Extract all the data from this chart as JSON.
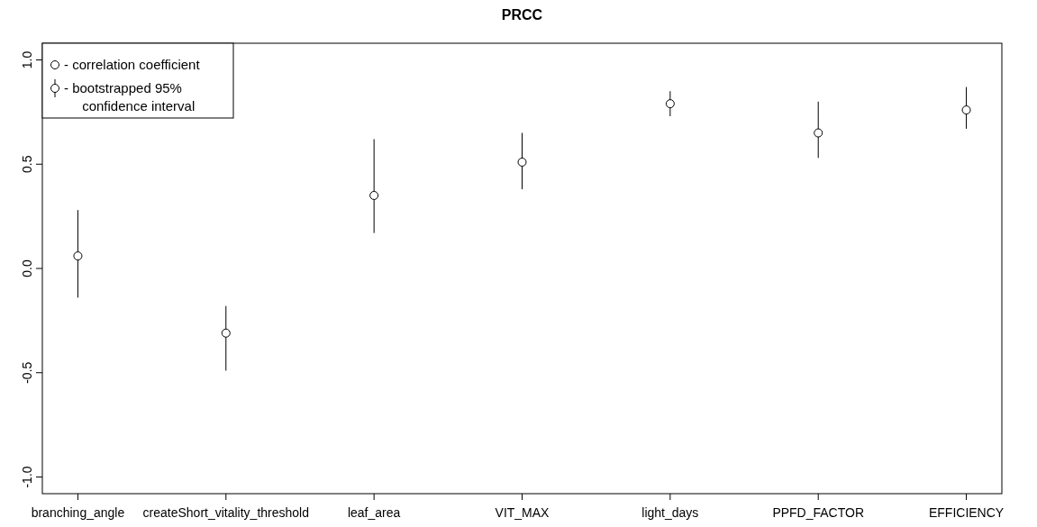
{
  "chart_data": {
    "type": "scatter",
    "title": "PRCC",
    "categories": [
      "branching_angle",
      "createShort_vitality_threshold",
      "leaf_area",
      "VIT_MAX",
      "light_days",
      "PPFD_FACTOR",
      "EFFICIENCY"
    ],
    "series": [
      {
        "name": "- correlation coefficient",
        "color": "#000000",
        "values": [
          0.06,
          -0.31,
          0.35,
          0.51,
          0.79,
          0.65,
          0.76
        ],
        "errors": [
          [
            -0.14,
            0.28
          ],
          [
            -0.49,
            -0.18
          ],
          [
            0.17,
            0.62
          ],
          [
            0.38,
            0.65
          ],
          [
            0.73,
            0.85
          ],
          [
            0.53,
            0.8
          ],
          [
            0.67,
            0.87
          ]
        ]
      }
    ],
    "annotations": [
      "- bootstrapped 95% confidence interval"
    ],
    "ylim": [
      -1.08,
      1.08
    ],
    "yticks": [
      {
        "value": -1,
        "label": "-1.0"
      },
      {
        "value": -0.5,
        "label": "-0.5"
      },
      {
        "value": 0,
        "label": "0.0"
      },
      {
        "value": 0.5,
        "label": "0.5"
      },
      {
        "value": 1,
        "label": "1.0"
      }
    ],
    "marker": "circle",
    "legend": "top left",
    "grid": false
  }
}
